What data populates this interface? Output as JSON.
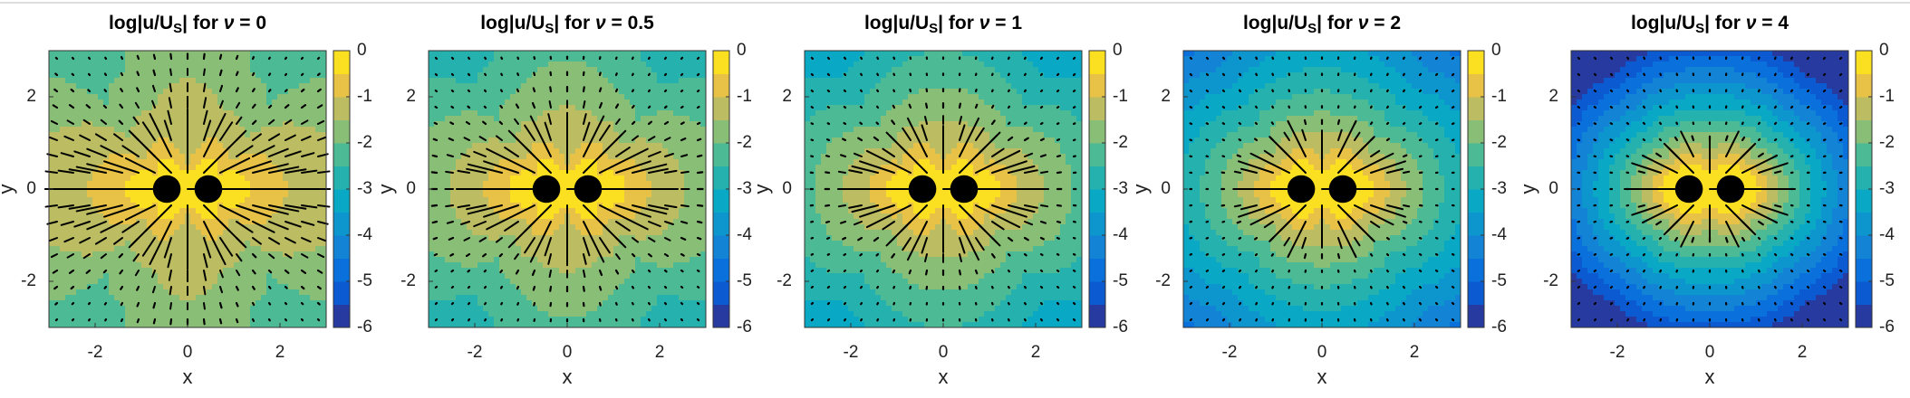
{
  "chart_data": [
    {
      "type": "contour",
      "title_parts": [
        "log|u/U",
        "S",
        "| for ",
        "ν",
        " = ",
        0
      ],
      "xlabel": "x",
      "ylabel": "y",
      "xlim": [
        -3,
        3
      ],
      "ylim": [
        -3,
        3
      ],
      "xticks": [
        -2,
        0,
        2
      ],
      "yticks": [
        -2,
        0,
        2
      ],
      "clim": [
        -6,
        0
      ],
      "cticks": [
        0,
        -1,
        -2,
        -3,
        -4,
        -5,
        -6
      ]
    },
    {
      "type": "contour",
      "title_parts": [
        "log|u/U",
        "S",
        "| for ",
        "ν",
        " = ",
        0.5
      ],
      "xlabel": "x",
      "ylabel": "y",
      "xlim": [
        -3,
        3
      ],
      "ylim": [
        -3,
        3
      ],
      "xticks": [
        -2,
        0,
        2
      ],
      "yticks": [
        -2,
        0,
        2
      ],
      "clim": [
        -6,
        0
      ],
      "cticks": [
        0,
        -1,
        -2,
        -3,
        -4,
        -5,
        -6
      ]
    },
    {
      "type": "contour",
      "title_parts": [
        "log|u/U",
        "S",
        "| for ",
        "ν",
        " = ",
        1
      ],
      "xlabel": "x",
      "ylabel": "y",
      "xlim": [
        -3,
        3
      ],
      "ylim": [
        -3,
        3
      ],
      "xticks": [
        -2,
        0,
        2
      ],
      "yticks": [
        -2,
        0,
        2
      ],
      "clim": [
        -6,
        0
      ],
      "cticks": [
        0,
        -1,
        -2,
        -3,
        -4,
        -5,
        -6
      ]
    },
    {
      "type": "contour",
      "title_parts": [
        "log|u/U",
        "S",
        "| for ",
        "ν",
        " = ",
        2
      ],
      "xlabel": "x",
      "ylabel": "y",
      "xlim": [
        -3,
        3
      ],
      "ylim": [
        -3,
        3
      ],
      "xticks": [
        -2,
        0,
        2
      ],
      "yticks": [
        -2,
        0,
        2
      ],
      "clim": [
        -6,
        0
      ],
      "cticks": [
        0,
        -1,
        -2,
        -3,
        -4,
        -5,
        -6
      ]
    },
    {
      "type": "contour",
      "title_parts": [
        "log|u/U",
        "S",
        "| for ",
        "ν",
        " = ",
        4
      ],
      "xlabel": "x",
      "ylabel": "y",
      "xlim": [
        -3,
        3
      ],
      "ylim": [
        -3,
        3
      ],
      "xticks": [
        -2,
        0,
        2
      ],
      "yticks": [
        -2,
        0,
        2
      ],
      "clim": [
        -6,
        0
      ],
      "cticks": [
        0,
        -1,
        -2,
        -3,
        -4,
        -5,
        -6
      ]
    }
  ]
}
